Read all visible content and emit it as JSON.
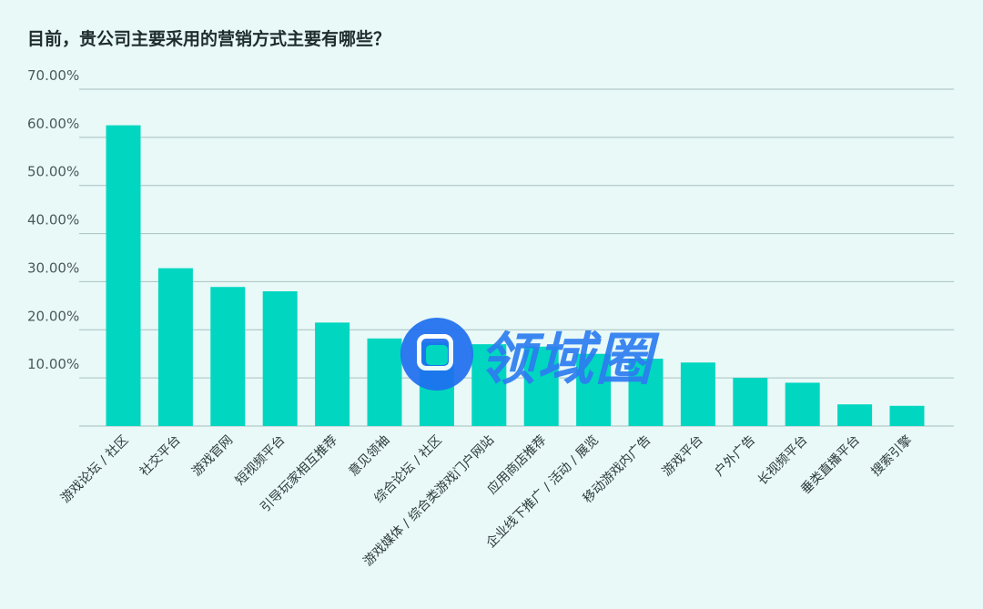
{
  "chart_data": {
    "type": "bar",
    "title": "目前，贵公司主要采用的营销方式主要有哪些？",
    "categories": [
      "游戏论坛 / 社区",
      "社交平台",
      "游戏官网",
      "短视频平台",
      "引导玩家相互推荐",
      "意见领袖",
      "综合论坛 / 社区",
      "游戏媒体 / 综合类游戏门户网站",
      "应用商店推荐",
      "企业线下推广 / 活动 / 展览",
      "移动游戏内广告",
      "游戏平台",
      "户外广告",
      "长视频平台",
      "垂类直播平台",
      "搜索引擎"
    ],
    "values": [
      62.5,
      32.8,
      28.9,
      28.0,
      21.5,
      18.2,
      17.5,
      17.0,
      16.5,
      15.0,
      14.0,
      13.2,
      10.0,
      9.0,
      4.5,
      4.2
    ],
    "yticks": [
      "10.00%",
      "20.00%",
      "30.00%",
      "40.00%",
      "50.00%",
      "60.00%",
      "70.00%"
    ],
    "ylim": [
      0,
      70
    ],
    "grid": true,
    "bar_color": "#00d6c0"
  },
  "watermark": {
    "text": "领域圈",
    "icon": "logo-icon"
  }
}
